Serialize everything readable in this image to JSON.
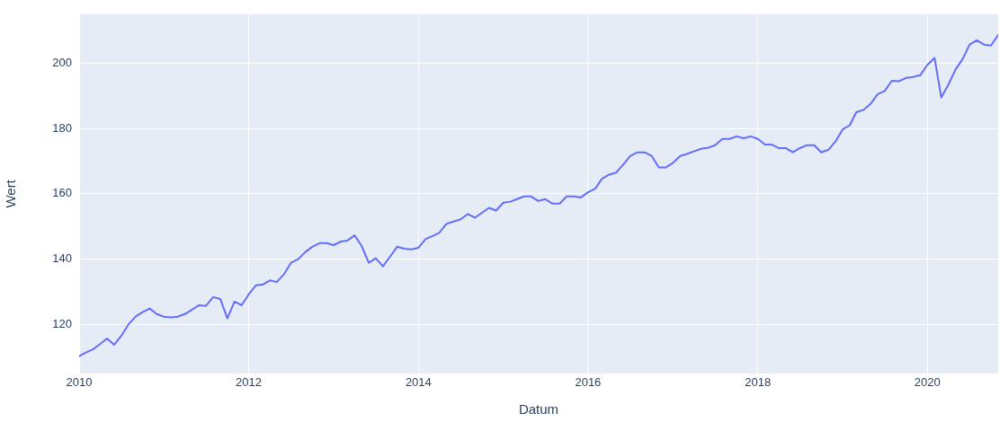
{
  "chart_data": {
    "type": "line",
    "xlabel": "Datum",
    "ylabel": "Wert",
    "x": [
      "2010-01",
      "2010-02",
      "2010-03",
      "2010-04",
      "2010-05",
      "2010-06",
      "2010-07",
      "2010-08",
      "2010-09",
      "2010-10",
      "2010-11",
      "2010-12",
      "2011-01",
      "2011-02",
      "2011-03",
      "2011-04",
      "2011-05",
      "2011-06",
      "2011-07",
      "2011-08",
      "2011-09",
      "2011-10",
      "2011-11",
      "2011-12",
      "2012-01",
      "2012-02",
      "2012-03",
      "2012-04",
      "2012-05",
      "2012-06",
      "2012-07",
      "2012-08",
      "2012-09",
      "2012-10",
      "2012-11",
      "2012-12",
      "2013-01",
      "2013-02",
      "2013-03",
      "2013-04",
      "2013-05",
      "2013-06",
      "2013-07",
      "2013-08",
      "2013-09",
      "2013-10",
      "2013-11",
      "2013-12",
      "2014-01",
      "2014-02",
      "2014-03",
      "2014-04",
      "2014-05",
      "2014-06",
      "2014-07",
      "2014-08",
      "2014-09",
      "2014-10",
      "2014-11",
      "2014-12",
      "2015-01",
      "2015-02",
      "2015-03",
      "2015-04",
      "2015-05",
      "2015-06",
      "2015-07",
      "2015-08",
      "2015-09",
      "2015-10",
      "2015-11",
      "2015-12",
      "2016-01",
      "2016-02",
      "2016-03",
      "2016-04",
      "2016-05",
      "2016-06",
      "2016-07",
      "2016-08",
      "2016-09",
      "2016-10",
      "2016-11",
      "2016-12",
      "2017-01",
      "2017-02",
      "2017-03",
      "2017-04",
      "2017-05",
      "2017-06",
      "2017-07",
      "2017-08",
      "2017-09",
      "2017-10",
      "2017-11",
      "2017-12",
      "2018-01",
      "2018-02",
      "2018-03",
      "2018-04",
      "2018-05",
      "2018-06",
      "2018-07",
      "2018-08",
      "2018-09",
      "2018-10",
      "2018-11",
      "2018-12",
      "2019-01",
      "2019-02",
      "2019-03",
      "2019-04",
      "2019-05",
      "2019-06",
      "2019-07",
      "2019-08",
      "2019-09",
      "2019-10",
      "2019-11",
      "2019-12",
      "2020-01",
      "2020-02",
      "2020-03",
      "2020-04",
      "2020-05",
      "2020-06",
      "2020-07",
      "2020-08",
      "2020-09",
      "2020-10",
      "2020-11"
    ],
    "series": [
      {
        "color": "#636efa",
        "values": [
          110.3,
          111.5,
          112.4,
          114,
          115.7,
          113.8,
          116.5,
          120,
          122.4,
          123.8,
          124.9,
          123.2,
          122.4,
          122.2,
          122.4,
          123.2,
          124.5,
          125.9,
          125.7,
          128.4,
          127.8,
          121.9,
          127,
          125.9,
          129.2,
          132,
          132.2,
          133.5,
          133,
          135.4,
          138.9,
          140,
          142.2,
          143.8,
          144.9,
          144.9,
          144.3,
          145.4,
          145.7,
          147.3,
          144.1,
          138.9,
          140.3,
          137.8,
          140.8,
          143.8,
          143.2,
          143,
          143.5,
          146.2,
          147,
          148.1,
          150.8,
          151.5,
          152.2,
          153.8,
          152.7,
          154.2,
          155.7,
          154.9,
          157.3,
          157.6,
          158.4,
          159.2,
          159.2,
          157.8,
          158.4,
          157,
          157,
          159.2,
          159.2,
          158.9,
          160.5,
          161.6,
          164.6,
          165.9,
          166.5,
          169,
          171.6,
          172.7,
          172.7,
          171.6,
          168.1,
          168.1,
          169.5,
          171.6,
          172.2,
          173,
          173.8,
          174.1,
          174.9,
          176.8,
          176.8,
          177.6,
          177,
          177.6,
          176.8,
          175.1,
          175.1,
          174,
          174,
          172.7,
          174,
          174.9,
          174.9,
          172.7,
          173.5,
          176,
          179.7,
          181,
          185,
          185.7,
          187.5,
          190.5,
          191.5,
          194.6,
          194.5,
          195.5,
          195.8,
          196.3,
          199.5,
          201.6,
          189.5,
          193.5,
          198,
          201.3,
          205.7,
          207,
          205.7,
          205.4,
          208.7
        ]
      }
    ],
    "xlim": [
      "2010-01",
      "2020-11"
    ],
    "xticks": [
      "2010",
      "2012",
      "2014",
      "2016",
      "2018",
      "2020"
    ],
    "ylim": [
      105,
      215
    ],
    "yticks": [
      120,
      140,
      160,
      180,
      200
    ],
    "grid": true,
    "legend": false,
    "marker": "none",
    "line_style": "solid"
  }
}
